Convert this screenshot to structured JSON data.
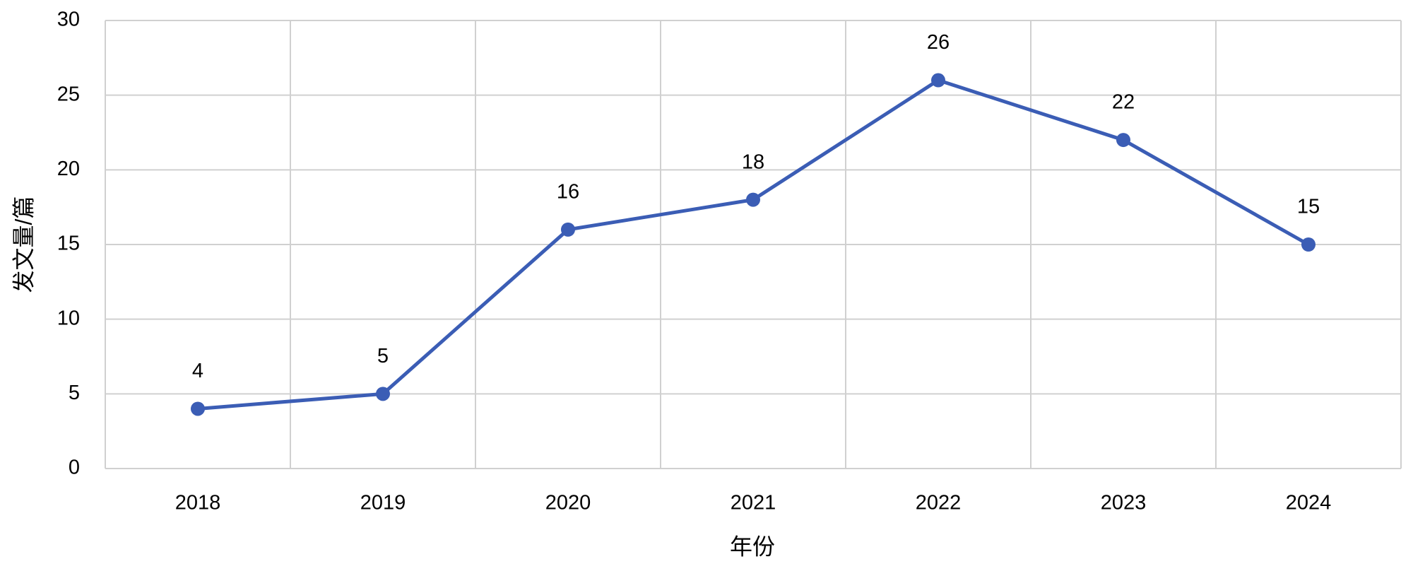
{
  "chart_data": {
    "type": "line",
    "x_label": "年份",
    "y_label": "发文量/篇",
    "categories": [
      "2018",
      "2019",
      "2020",
      "2021",
      "2022",
      "2023",
      "2024"
    ],
    "values": [
      4,
      5,
      16,
      18,
      26,
      22,
      15
    ],
    "color": "#3b5db5",
    "ylim": [
      0,
      30
    ],
    "yticks": [
      0,
      5,
      10,
      15,
      20,
      25,
      30
    ],
    "grid": true
  }
}
